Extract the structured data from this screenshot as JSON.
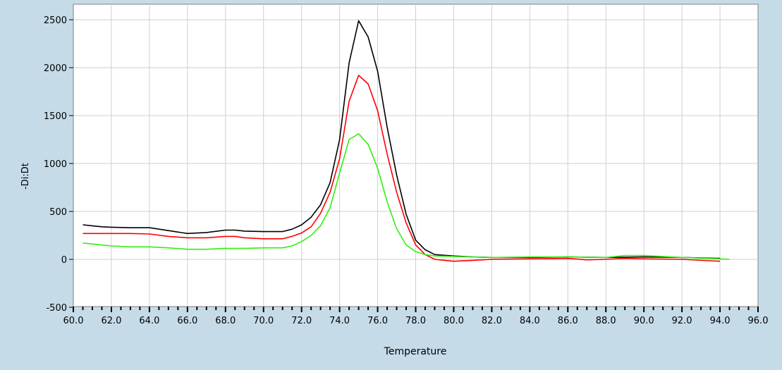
{
  "chart_data": {
    "type": "line",
    "xlabel": "Temperature",
    "ylabel": "-Di:Dt",
    "xlim": [
      60,
      96
    ],
    "ylim": [
      -500,
      2500
    ],
    "x_ticks": [
      "60.0",
      "62.0",
      "64.0",
      "66.0",
      "68.0",
      "70.0",
      "72.0",
      "74.0",
      "76.0",
      "78.0",
      "80.0",
      "82.0",
      "84.0",
      "86.0",
      "88.0",
      "90.0",
      "92.0",
      "94.0",
      "96.0"
    ],
    "y_ticks": [
      "-500",
      "0",
      "500",
      "1000",
      "1500",
      "2000",
      "2500"
    ],
    "grid": true,
    "background": "#ffffff",
    "series": [
      {
        "color": "#000000",
        "points": [
          [
            60.5,
            360
          ],
          [
            61.0,
            350
          ],
          [
            61.5,
            340
          ],
          [
            62.0,
            335
          ],
          [
            63.0,
            330
          ],
          [
            64.0,
            330
          ],
          [
            65.0,
            300
          ],
          [
            66.0,
            270
          ],
          [
            67.0,
            280
          ],
          [
            68.0,
            305
          ],
          [
            68.5,
            305
          ],
          [
            69.0,
            295
          ],
          [
            70.0,
            290
          ],
          [
            71.0,
            290
          ],
          [
            71.5,
            315
          ],
          [
            72.0,
            360
          ],
          [
            72.5,
            440
          ],
          [
            73.0,
            570
          ],
          [
            73.5,
            800
          ],
          [
            74.0,
            1250
          ],
          [
            74.5,
            2050
          ],
          [
            75.0,
            2490
          ],
          [
            75.5,
            2320
          ],
          [
            76.0,
            1960
          ],
          [
            76.5,
            1380
          ],
          [
            77.0,
            880
          ],
          [
            77.5,
            470
          ],
          [
            78.0,
            200
          ],
          [
            78.5,
            100
          ],
          [
            79.0,
            50
          ],
          [
            80.0,
            35
          ],
          [
            81.0,
            25
          ],
          [
            82.0,
            20
          ],
          [
            84.0,
            20
          ],
          [
            86.0,
            25
          ],
          [
            88.0,
            20
          ],
          [
            90.0,
            25
          ],
          [
            92.0,
            20
          ],
          [
            94.0,
            10
          ]
        ]
      },
      {
        "color": "#ff0000",
        "points": [
          [
            60.5,
            270
          ],
          [
            61.0,
            270
          ],
          [
            62.0,
            270
          ],
          [
            63.0,
            270
          ],
          [
            64.0,
            265
          ],
          [
            65.0,
            240
          ],
          [
            66.0,
            225
          ],
          [
            67.0,
            225
          ],
          [
            68.0,
            240
          ],
          [
            68.5,
            240
          ],
          [
            69.0,
            225
          ],
          [
            70.0,
            215
          ],
          [
            71.0,
            215
          ],
          [
            71.5,
            240
          ],
          [
            72.0,
            275
          ],
          [
            72.5,
            340
          ],
          [
            73.0,
            480
          ],
          [
            73.5,
            700
          ],
          [
            74.0,
            1050
          ],
          [
            74.5,
            1650
          ],
          [
            75.0,
            1920
          ],
          [
            75.5,
            1830
          ],
          [
            76.0,
            1550
          ],
          [
            76.5,
            1100
          ],
          [
            77.0,
            700
          ],
          [
            77.5,
            380
          ],
          [
            78.0,
            150
          ],
          [
            78.5,
            50
          ],
          [
            79.0,
            0
          ],
          [
            80.0,
            -20
          ],
          [
            81.0,
            -10
          ],
          [
            82.0,
            0
          ],
          [
            84.0,
            5
          ],
          [
            86.0,
            10
          ],
          [
            87.0,
            -5
          ],
          [
            88.0,
            0
          ],
          [
            89.0,
            10
          ],
          [
            90.0,
            5
          ],
          [
            92.0,
            0
          ],
          [
            94.0,
            -20
          ]
        ]
      },
      {
        "color": "#33ee11",
        "points": [
          [
            60.5,
            170
          ],
          [
            61.0,
            160
          ],
          [
            62.0,
            140
          ],
          [
            63.0,
            130
          ],
          [
            64.0,
            130
          ],
          [
            65.0,
            120
          ],
          [
            66.0,
            105
          ],
          [
            67.0,
            105
          ],
          [
            68.0,
            115
          ],
          [
            69.0,
            115
          ],
          [
            70.0,
            120
          ],
          [
            71.0,
            120
          ],
          [
            71.5,
            140
          ],
          [
            72.0,
            185
          ],
          [
            72.5,
            250
          ],
          [
            73.0,
            350
          ],
          [
            73.5,
            540
          ],
          [
            74.0,
            900
          ],
          [
            74.5,
            1250
          ],
          [
            75.0,
            1310
          ],
          [
            75.5,
            1200
          ],
          [
            76.0,
            950
          ],
          [
            76.5,
            600
          ],
          [
            77.0,
            320
          ],
          [
            77.5,
            150
          ],
          [
            78.0,
            80
          ],
          [
            78.5,
            50
          ],
          [
            79.0,
            35
          ],
          [
            80.0,
            30
          ],
          [
            82.0,
            20
          ],
          [
            84.0,
            25
          ],
          [
            86.0,
            25
          ],
          [
            88.0,
            20
          ],
          [
            89.0,
            40
          ],
          [
            90.0,
            40
          ],
          [
            91.0,
            30
          ],
          [
            92.0,
            20
          ],
          [
            94.0,
            5
          ],
          [
            94.5,
            0
          ]
        ]
      }
    ]
  }
}
